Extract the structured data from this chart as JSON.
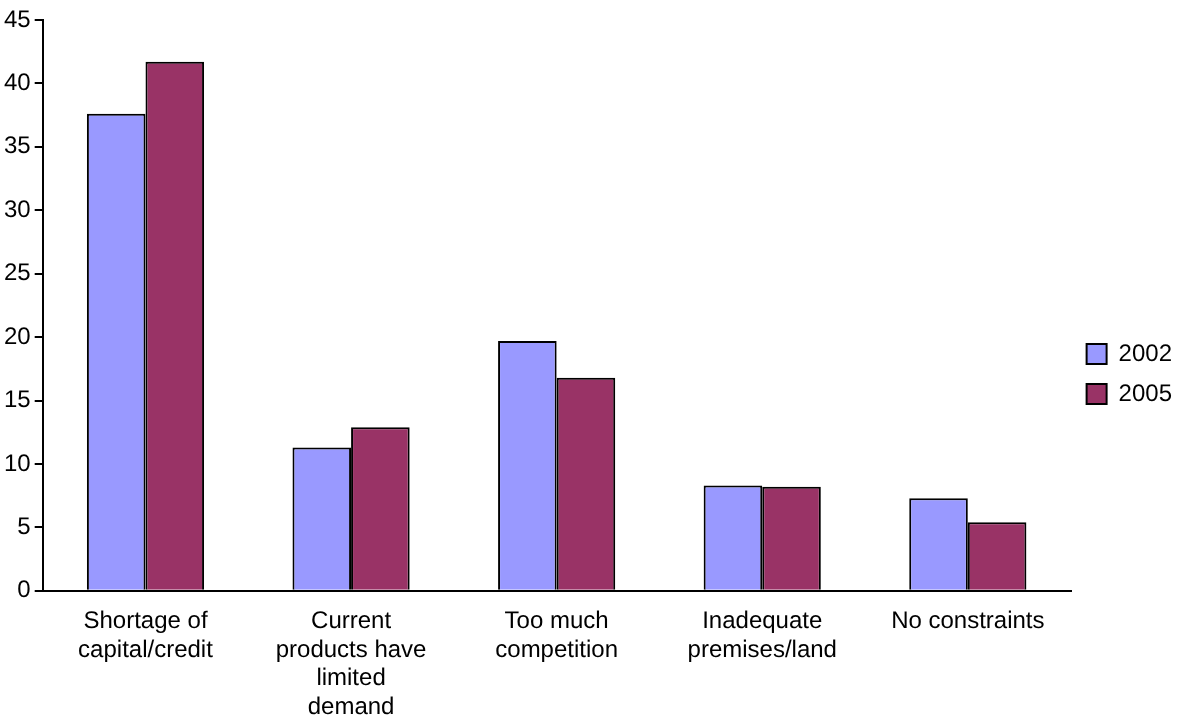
{
  "chart_data": {
    "type": "bar",
    "categories": [
      "Shortage of capital/credit",
      "Current products have limited demand",
      "Too much competition",
      "Inadequate premises/land",
      "No constraints"
    ],
    "series": [
      {
        "name": "2002",
        "color": "#9999ff",
        "values": [
          37.6,
          11.3,
          19.7,
          8.3,
          7.3
        ]
      },
      {
        "name": "2005",
        "color": "#993366",
        "values": [
          41.7,
          12.9,
          16.8,
          8.2,
          5.4
        ]
      }
    ],
    "ylim": [
      0,
      45
    ],
    "yticks": [
      0,
      5,
      10,
      15,
      20,
      25,
      30,
      35,
      40,
      45
    ],
    "grid": false,
    "legend": "right"
  }
}
